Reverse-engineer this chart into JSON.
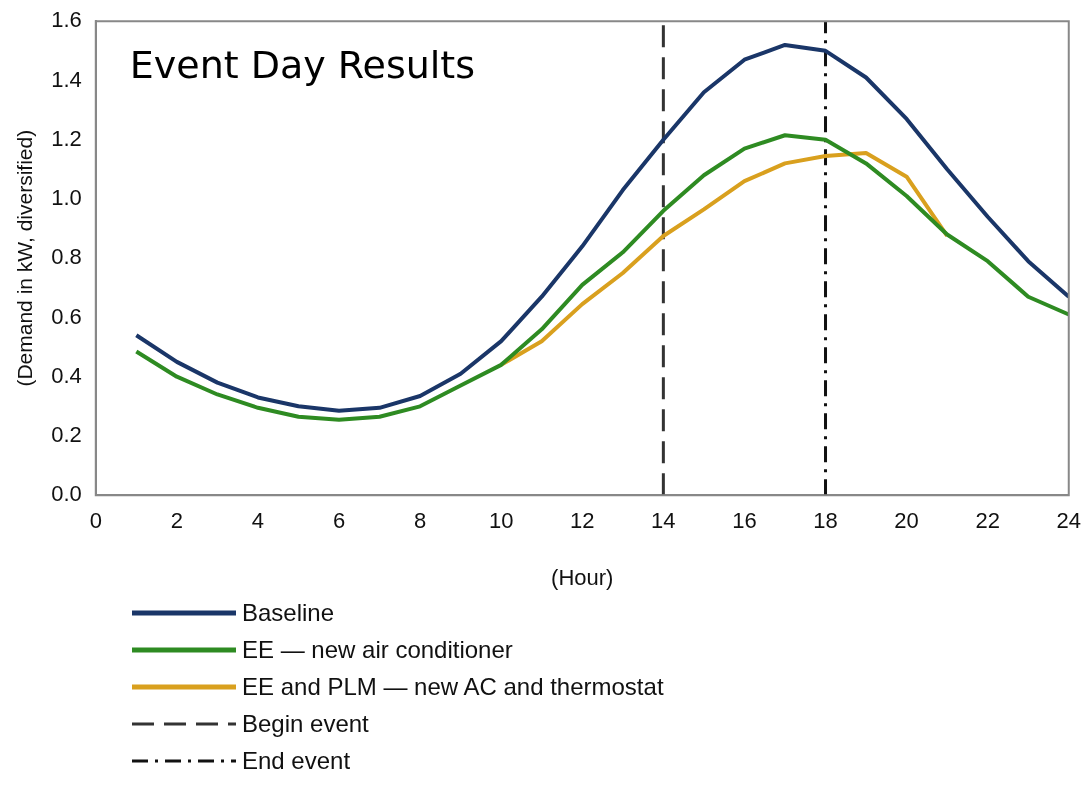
{
  "chart_data": {
    "type": "line",
    "title": "Event Day Results",
    "xlabel": "(Hour)",
    "ylabel": "(Demand in kW, diversified)",
    "x": [
      1,
      2,
      3,
      4,
      5,
      6,
      7,
      8,
      9,
      10,
      11,
      12,
      13,
      14,
      15,
      16,
      17,
      18,
      19,
      20,
      21,
      22,
      23,
      24
    ],
    "series": [
      {
        "name": "Baseline",
        "color": "#1a3668",
        "values": [
          0.54,
          0.45,
          0.38,
          0.33,
          0.3,
          0.285,
          0.295,
          0.335,
          0.41,
          0.52,
          0.67,
          0.84,
          1.03,
          1.2,
          1.36,
          1.47,
          1.52,
          1.5,
          1.41,
          1.27,
          1.1,
          0.94,
          0.79,
          0.67
        ]
      },
      {
        "name": "EE — new air conditioner",
        "color": "#2e8b22",
        "values": [
          0.485,
          0.4,
          0.34,
          0.295,
          0.265,
          0.255,
          0.265,
          0.3,
          0.37,
          0.44,
          0.56,
          0.71,
          0.82,
          0.96,
          1.08,
          1.17,
          1.215,
          1.2,
          1.12,
          1.01,
          0.88,
          0.79,
          0.67,
          0.61
        ]
      },
      {
        "name": "EE and PLM — new AC and thermostat",
        "color": "#d9a01e",
        "x": [
          10,
          11,
          12,
          13,
          14,
          15,
          16,
          17,
          18,
          19,
          20,
          21
        ],
        "values": [
          0.44,
          0.52,
          0.645,
          0.75,
          0.875,
          0.965,
          1.06,
          1.12,
          1.145,
          1.155,
          1.075,
          0.875
        ]
      }
    ],
    "xlim": [
      0,
      24
    ],
    "xticks": [
      0,
      2,
      4,
      6,
      8,
      10,
      12,
      14,
      16,
      18,
      20,
      22,
      24
    ],
    "ylim": [
      0,
      1.6
    ],
    "yticks": [
      {
        "value": 0,
        "label": "0.0"
      },
      {
        "value": 0.2,
        "label": "0.2"
      },
      {
        "value": 0.4,
        "label": "0.4"
      },
      {
        "value": 0.6,
        "label": "0.6"
      },
      {
        "value": 0.8,
        "label": "0.8"
      },
      {
        "value": 1,
        "label": "1.0"
      },
      {
        "value": 1.2,
        "label": "1.2"
      },
      {
        "value": 1.4,
        "label": "1.4"
      },
      {
        "value": 1.6,
        "label": "1.6"
      }
    ],
    "ref_lines": [
      {
        "axis": "x",
        "value": 14,
        "label": "Begin event",
        "color": "#333333",
        "line_style": "dashed"
      },
      {
        "axis": "x",
        "value": 18,
        "label": "End event",
        "color": "#111111",
        "line_style": "dashdot"
      }
    ],
    "grid": false,
    "legend": "bottom",
    "marker": "none",
    "line_style": "solid"
  }
}
